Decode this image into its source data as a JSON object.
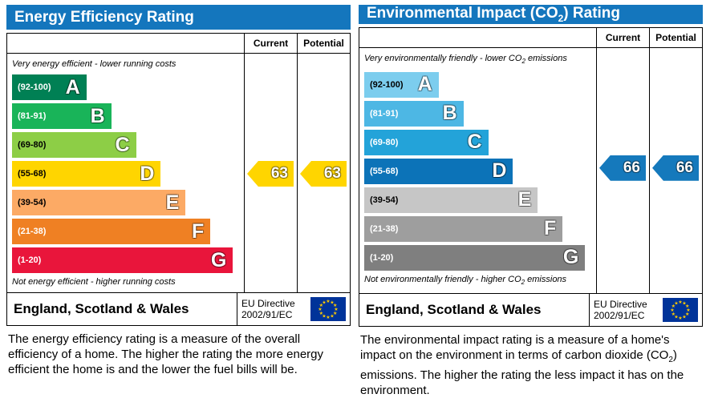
{
  "colors": {
    "header_blue": "#1476bd",
    "eu_flag_blue": "#003399",
    "eu_star_yellow": "#ffcc00"
  },
  "left": {
    "title": "Energy Efficiency Rating",
    "columns": {
      "current": "Current",
      "potential": "Potential"
    },
    "top_caption": "Very energy efficient - lower running costs",
    "bottom_caption": "Not energy efficient - higher running costs",
    "bands": [
      {
        "letter": "A",
        "range": "(92-100)",
        "color": "#008054",
        "width_pct": 33,
        "text_color": "#ffffff"
      },
      {
        "letter": "B",
        "range": "(81-91)",
        "color": "#19b459",
        "width_pct": 44,
        "text_color": "#ffffff"
      },
      {
        "letter": "C",
        "range": "(69-80)",
        "color": "#8dce46",
        "width_pct": 55,
        "text_color": "#000000"
      },
      {
        "letter": "D",
        "range": "(55-68)",
        "color": "#ffd500",
        "width_pct": 66,
        "text_color": "#000000"
      },
      {
        "letter": "E",
        "range": "(39-54)",
        "color": "#fcaa65",
        "width_pct": 77,
        "text_color": "#000000"
      },
      {
        "letter": "F",
        "range": "(21-38)",
        "color": "#ef8023",
        "width_pct": 88,
        "text_color": "#ffffff"
      },
      {
        "letter": "G",
        "range": "(1-20)",
        "color": "#e9153b",
        "width_pct": 98,
        "text_color": "#ffffff"
      }
    ],
    "current_arrow": {
      "value": "63",
      "color": "#ffd500",
      "band_index": 3
    },
    "potential_arrow": {
      "value": "63",
      "color": "#ffd500",
      "band_index": 3
    },
    "footer": {
      "region": "England, Scotland & Wales",
      "directive1": "EU Directive",
      "directive2": "2002/91/EC"
    },
    "description": "The energy efficiency rating is a measure of the overall efficiency of a home. The higher the rating the more energy efficient the home is and the lower the fuel bills will be."
  },
  "right": {
    "title_pre": "Environmental Impact (CO",
    "title_sub": "2",
    "title_post": ") Rating",
    "columns": {
      "current": "Current",
      "potential": "Potential"
    },
    "top_caption_pre": "Very environmentally friendly - lower CO",
    "top_caption_sub": "2",
    "top_caption_post": " emissions",
    "bottom_caption_pre": "Not environmentally friendly - higher CO",
    "bottom_caption_sub": "2",
    "bottom_caption_post": " emissions",
    "bands": [
      {
        "letter": "A",
        "range": "(92-100)",
        "color": "#7ccdee",
        "width_pct": 33,
        "text_color": "#000000"
      },
      {
        "letter": "B",
        "range": "(81-91)",
        "color": "#4db7e4",
        "width_pct": 44,
        "text_color": "#ffffff"
      },
      {
        "letter": "C",
        "range": "(69-80)",
        "color": "#23a3d9",
        "width_pct": 55,
        "text_color": "#ffffff"
      },
      {
        "letter": "D",
        "range": "(55-68)",
        "color": "#0c73b8",
        "width_pct": 66,
        "text_color": "#ffffff"
      },
      {
        "letter": "E",
        "range": "(39-54)",
        "color": "#c6c6c6",
        "width_pct": 77,
        "text_color": "#000000"
      },
      {
        "letter": "F",
        "range": "(21-38)",
        "color": "#9e9e9e",
        "width_pct": 88,
        "text_color": "#ffffff"
      },
      {
        "letter": "G",
        "range": "(1-20)",
        "color": "#7f7f7f",
        "width_pct": 98,
        "text_color": "#ffffff"
      }
    ],
    "current_arrow": {
      "value": "66",
      "color": "#1579bc",
      "band_index": 3
    },
    "potential_arrow": {
      "value": "66",
      "color": "#1579bc",
      "band_index": 3
    },
    "footer": {
      "region": "England, Scotland & Wales",
      "directive1": "EU Directive",
      "directive2": "2002/91/EC"
    },
    "description_pre": "The environmental impact rating is a measure of a home's impact on the environment in terms of carbon dioxide (CO",
    "description_sub": "2",
    "description_post": ") emissions. The higher the rating the less impact it has on the environment."
  }
}
